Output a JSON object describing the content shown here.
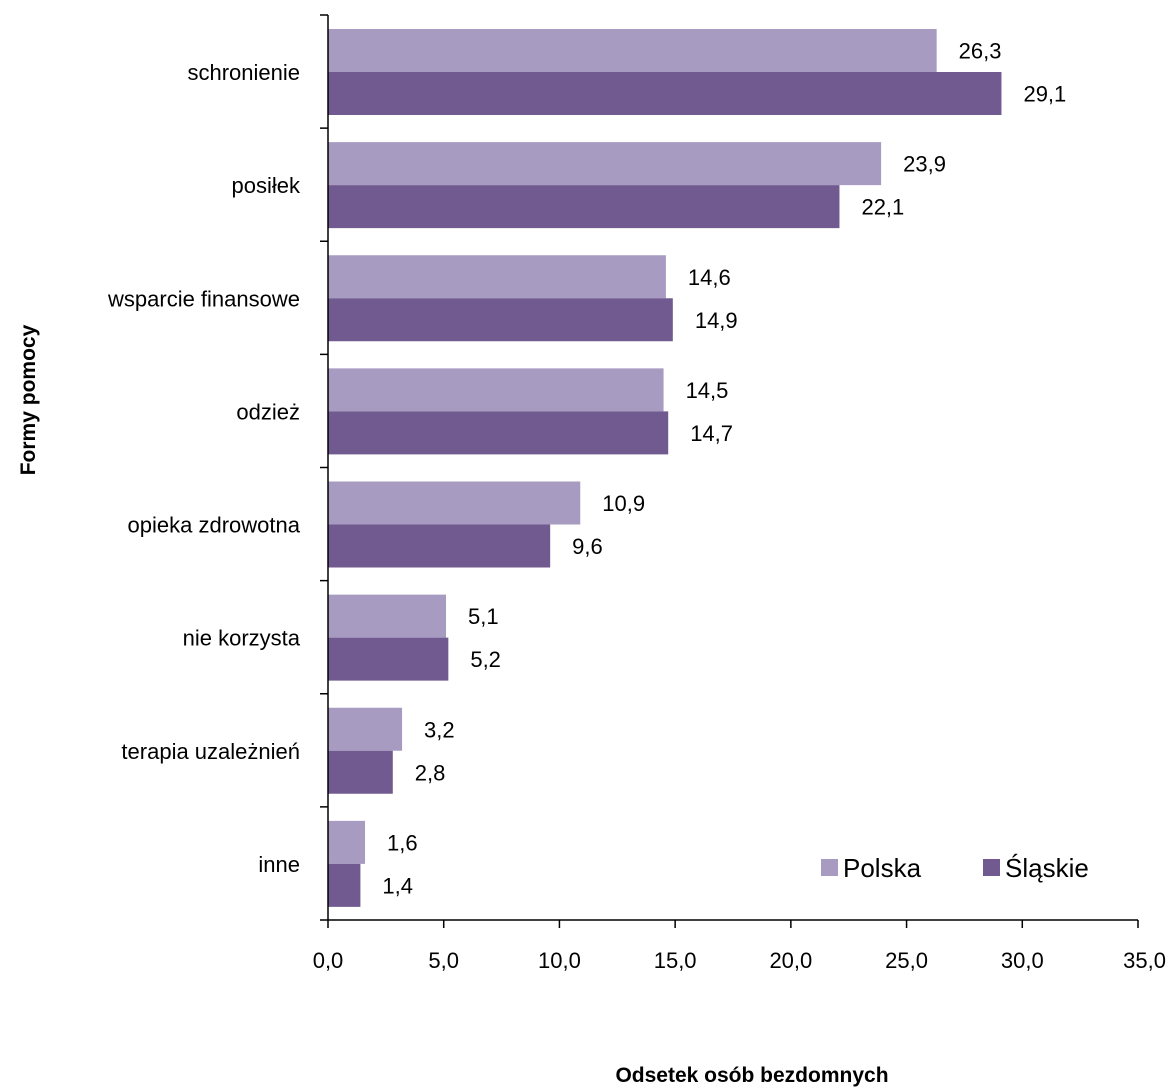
{
  "chart_data": {
    "type": "bar",
    "orientation": "horizontal",
    "categories": [
      "schronienie",
      "posiłek",
      "wsparcie finansowe",
      "odzież",
      "opieka zdrowotna",
      "nie korzysta",
      "terapia uzależnień",
      "inne"
    ],
    "series": [
      {
        "name": "Polska",
        "color": "#a89bc2",
        "values": [
          26.3,
          23.9,
          14.6,
          14.5,
          10.9,
          5.1,
          3.2,
          1.6
        ],
        "labels": [
          "26,3",
          "23,9",
          "14,6",
          "14,5",
          "10,9",
          "5,1",
          "3,2",
          "1,6"
        ]
      },
      {
        "name": "Śląskie",
        "color": "#715a8f",
        "values": [
          29.1,
          22.1,
          14.9,
          14.7,
          9.6,
          5.2,
          2.8,
          1.4
        ],
        "labels": [
          "29,1",
          "22,1",
          "14,9",
          "14,7",
          "9,6",
          "5,2",
          "2,8",
          "1,4"
        ]
      }
    ],
    "xlabel": "Odsetek osób bezdomnych",
    "ylabel": "Formy pomocy",
    "xlim": [
      0,
      35
    ],
    "xticks": [
      0,
      5,
      10,
      15,
      20,
      25,
      30,
      35
    ],
    "xtick_labels": [
      "0,0",
      "5,0",
      "10,0",
      "15,0",
      "20,0",
      "25,0",
      "30,0",
      "35,0"
    ],
    "grid": false,
    "legend_position": "bottom-right"
  }
}
